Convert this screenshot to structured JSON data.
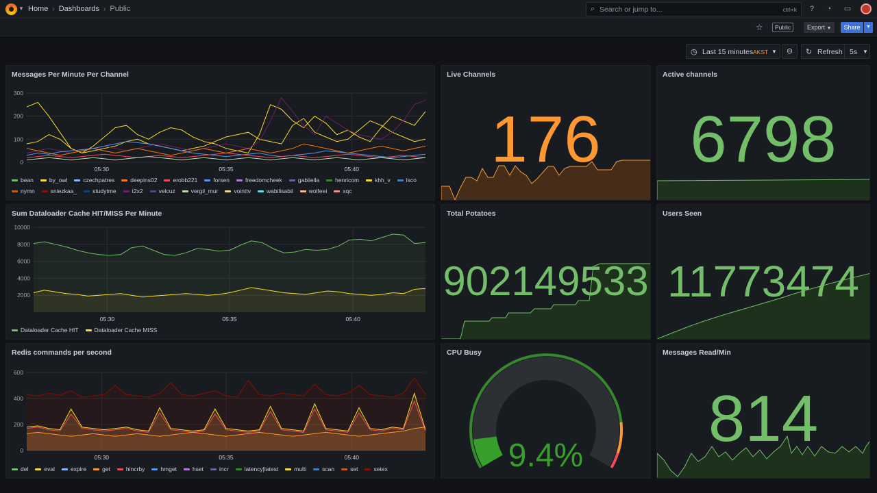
{
  "topbar": {
    "breadcrumb": [
      "Home",
      "Dashboards",
      "Public"
    ],
    "search_placeholder": "Search or jump to...",
    "search_shortcut": "ctrl+k"
  },
  "subbar": {
    "public_label": "Public",
    "export_label": "Export",
    "share_label": "Share"
  },
  "controls": {
    "time_range": "Last 15 minutes",
    "timezone": "AKST",
    "refresh_label": "Refresh",
    "refresh_interval": "5s"
  },
  "colors": {
    "green": "#73bf69",
    "orange": "#ff9830",
    "yellow": "#fade2a",
    "red": "#f2495c"
  },
  "panels": {
    "messages": {
      "title": "Messages Per Minute Per Channel",
      "legend": [
        {
          "name": "bean",
          "color": "#73bf69"
        },
        {
          "name": "by_owl",
          "color": "#fade2a"
        },
        {
          "name": "czechpatres",
          "color": "#8ab8ff"
        },
        {
          "name": "deepins02",
          "color": "#ff780a"
        },
        {
          "name": "erobb221",
          "color": "#f2495c"
        },
        {
          "name": "forsen",
          "color": "#5794f2"
        },
        {
          "name": "freedomcheek",
          "color": "#b877d9"
        },
        {
          "name": "gabiiella",
          "color": "#705da0"
        },
        {
          "name": "henricom",
          "color": "#37872d"
        },
        {
          "name": "khh_v",
          "color": "#fade2a"
        },
        {
          "name": "lsco",
          "color": "#447ebc"
        },
        {
          "name": "nymn",
          "color": "#c15c17"
        },
        {
          "name": "sniezkaa_",
          "color": "#890f02"
        },
        {
          "name": "studytme",
          "color": "#0a437c"
        },
        {
          "name": "t2x2",
          "color": "#6d1f62"
        },
        {
          "name": "velcuz",
          "color": "#584477"
        },
        {
          "name": "vergil_mur",
          "color": "#b7dbab"
        },
        {
          "name": "vointtv",
          "color": "#f4d598"
        },
        {
          "name": "wabilisabil",
          "color": "#70dbed"
        },
        {
          "name": "wolfeei",
          "color": "#f9ba8f"
        },
        {
          "name": "xqc",
          "color": "#f29191"
        }
      ]
    },
    "live_channels": {
      "title": "Live Channels",
      "value": "176"
    },
    "active_channels": {
      "title": "Active channels",
      "value": "6798"
    },
    "dataloader": {
      "title": "Sum Dataloader Cache HIT/MISS Per Minute",
      "legend": [
        {
          "name": "Dataloader Cache HIT",
          "color": "#73bf69"
        },
        {
          "name": "Dataloader Cache MISS",
          "color": "#fade2a"
        }
      ]
    },
    "total_potatoes": {
      "title": "Total Potatoes",
      "value": "902149533"
    },
    "users_seen": {
      "title": "Users Seen",
      "value": "11773474"
    },
    "redis": {
      "title": "Redis commands per second",
      "legend": [
        {
          "name": "del",
          "color": "#73bf69"
        },
        {
          "name": "eval",
          "color": "#fade2a"
        },
        {
          "name": "expire",
          "color": "#8ab8ff"
        },
        {
          "name": "get",
          "color": "#ff9830"
        },
        {
          "name": "hincrby",
          "color": "#f2495c"
        },
        {
          "name": "hmget",
          "color": "#5794f2"
        },
        {
          "name": "hset",
          "color": "#b877d9"
        },
        {
          "name": "incr",
          "color": "#705da0"
        },
        {
          "name": "latency|latest",
          "color": "#37872d"
        },
        {
          "name": "multi",
          "color": "#fade2a"
        },
        {
          "name": "scan",
          "color": "#447ebc"
        },
        {
          "name": "set",
          "color": "#c15c17"
        },
        {
          "name": "setex",
          "color": "#890f02"
        }
      ]
    },
    "cpu_busy": {
      "title": "CPU Busy",
      "value": "9.4%",
      "percent": 9.4
    },
    "messages_read": {
      "title": "Messages Read/Min",
      "value": "814"
    }
  },
  "chart_data": [
    {
      "type": "line",
      "title": "Messages Per Minute Per Channel",
      "x_ticks": [
        "05:30",
        "05:35",
        "05:40"
      ],
      "ylim": [
        0,
        300
      ],
      "y_ticks": [
        0,
        100,
        200,
        300
      ],
      "grid": true,
      "legend_placement": "bottom",
      "series": [
        {
          "name": "by_owl",
          "values": [
            240,
            260,
            200,
            130,
            60,
            40,
            70,
            110,
            150,
            160,
            120,
            100,
            130,
            150,
            140,
            110,
            90,
            80,
            60,
            50,
            40,
            120,
            250,
            230,
            180,
            150,
            200,
            170,
            120,
            140,
            110,
            90,
            150,
            200,
            180,
            160,
            220
          ]
        },
        {
          "name": "khh_v",
          "values": [
            80,
            90,
            120,
            100,
            60,
            40,
            50,
            60,
            70,
            90,
            100,
            80,
            70,
            60,
            50,
            60,
            70,
            90,
            110,
            120,
            130,
            100,
            90,
            80,
            160,
            190,
            130,
            110,
            90,
            100,
            140,
            180,
            160,
            130,
            110,
            90,
            100
          ]
        },
        {
          "name": "t2x2",
          "values": [
            40,
            50,
            60,
            50,
            40,
            50,
            60,
            70,
            60,
            50,
            60,
            70,
            80,
            70,
            60,
            50,
            60,
            70,
            80,
            70,
            60,
            90,
            180,
            280,
            220,
            160,
            120,
            200,
            170,
            140,
            120,
            110,
            100,
            130,
            180,
            250,
            270
          ]
        },
        {
          "name": "deepins02",
          "values": [
            60,
            50,
            40,
            30,
            40,
            50,
            60,
            50,
            40,
            50,
            60,
            50,
            40,
            30,
            40,
            50,
            60,
            50,
            40,
            50,
            60,
            50,
            40,
            50,
            60,
            80,
            70,
            60,
            50,
            40,
            50,
            60,
            70,
            60,
            50,
            60,
            70
          ]
        },
        {
          "name": "forsen",
          "values": [
            30,
            40,
            35,
            45,
            50,
            55,
            60,
            70,
            80,
            90,
            85,
            80,
            70,
            60,
            50,
            40,
            35,
            30,
            25,
            30,
            35,
            40,
            30,
            25,
            30,
            35,
            40,
            50,
            45,
            40,
            35,
            30,
            25,
            20,
            25,
            30,
            35
          ]
        },
        {
          "name": "erobb221",
          "values": [
            20,
            25,
            30,
            25,
            20,
            25,
            30,
            35,
            30,
            25,
            20,
            25,
            30,
            25,
            20,
            25,
            30,
            35,
            40,
            35,
            30,
            25,
            20,
            25,
            30,
            25,
            20,
            25,
            30,
            35,
            30,
            25,
            20,
            25,
            30,
            25,
            20
          ]
        },
        {
          "name": "vergil_mur",
          "values": [
            10,
            15,
            20,
            15,
            10,
            15,
            20,
            15,
            10,
            15,
            20,
            25,
            20,
            15,
            10,
            15,
            20,
            15,
            10,
            15,
            20,
            15,
            10,
            15,
            20,
            15,
            10,
            15,
            20,
            15,
            10,
            15,
            20,
            15,
            10,
            15,
            20
          ]
        }
      ]
    },
    {
      "type": "area",
      "title": "Sum Dataloader Cache HIT/MISS Per Minute",
      "x_ticks": [
        "05:30",
        "05:35",
        "05:40"
      ],
      "ylim": [
        0,
        10000
      ],
      "y_ticks": [
        2000,
        4000,
        6000,
        8000,
        10000
      ],
      "grid": true,
      "legend_placement": "bottom",
      "series": [
        {
          "name": "Dataloader Cache HIT",
          "values": [
            8100,
            8300,
            8000,
            7700,
            7300,
            7000,
            6800,
            6700,
            6800,
            7600,
            7800,
            7300,
            6800,
            6700,
            7000,
            7500,
            7400,
            7200,
            7300,
            7900,
            8400,
            8200,
            7500,
            7000,
            7100,
            7400,
            7300,
            7400,
            7800,
            8500,
            8600,
            8400,
            8800,
            9200,
            9100,
            8100,
            8200
          ]
        },
        {
          "name": "Dataloader Cache MISS",
          "values": [
            2300,
            2600,
            2400,
            2200,
            2100,
            1900,
            2000,
            2100,
            2200,
            2000,
            1800,
            1900,
            2000,
            2100,
            2200,
            2100,
            2000,
            2100,
            2300,
            2600,
            2900,
            2700,
            2500,
            2300,
            2200,
            2100,
            2300,
            2500,
            2400,
            2200,
            2100,
            2000,
            2100,
            2300,
            2200,
            2700,
            2800
          ]
        }
      ]
    },
    {
      "type": "area",
      "title": "Redis commands per second",
      "x_ticks": [
        "05:30",
        "05:35",
        "05:40"
      ],
      "ylim": [
        0,
        600
      ],
      "y_ticks": [
        0,
        200,
        400,
        600
      ],
      "grid": true,
      "legend_placement": "bottom",
      "series": [
        {
          "name": "setex",
          "values": [
            430,
            420,
            440,
            425,
            460,
            410,
            420,
            430,
            500,
            430,
            420,
            410,
            440,
            520,
            430,
            420,
            440,
            460,
            420,
            410,
            540,
            430,
            420,
            440,
            430,
            420,
            510,
            430,
            420,
            440,
            500,
            430,
            420,
            410,
            440,
            560,
            430
          ]
        },
        {
          "name": "multi",
          "values": [
            180,
            190,
            170,
            160,
            320,
            180,
            170,
            160,
            170,
            180,
            160,
            150,
            330,
            170,
            160,
            150,
            160,
            320,
            170,
            160,
            150,
            160,
            340,
            170,
            160,
            150,
            360,
            170,
            160,
            150,
            330,
            170,
            160,
            180,
            170,
            440,
            160
          ]
        },
        {
          "name": "hincrby",
          "values": [
            170,
            180,
            160,
            150,
            280,
            170,
            160,
            150,
            160,
            170,
            150,
            140,
            290,
            160,
            150,
            140,
            150,
            280,
            160,
            150,
            140,
            150,
            300,
            160,
            150,
            140,
            320,
            160,
            150,
            140,
            290,
            160,
            150,
            170,
            160,
            380,
            150
          ]
        },
        {
          "name": "get",
          "values": [
            130,
            140,
            130,
            120,
            110,
            120,
            130,
            120,
            110,
            120,
            130,
            120,
            110,
            120,
            130,
            140,
            130,
            120,
            110,
            120,
            130,
            140,
            130,
            120,
            110,
            120,
            130,
            140,
            130,
            120,
            110,
            120,
            130,
            140,
            150,
            170,
            180
          ]
        }
      ]
    },
    {
      "type": "gauge",
      "title": "CPU Busy",
      "value": 9.4,
      "unit": "%",
      "range": [
        0,
        100
      ],
      "thresholds": [
        {
          "value": 0,
          "color": "#37872d"
        },
        {
          "value": 85,
          "color": "#ff9830"
        },
        {
          "value": 95,
          "color": "#f2495c"
        }
      ]
    }
  ]
}
